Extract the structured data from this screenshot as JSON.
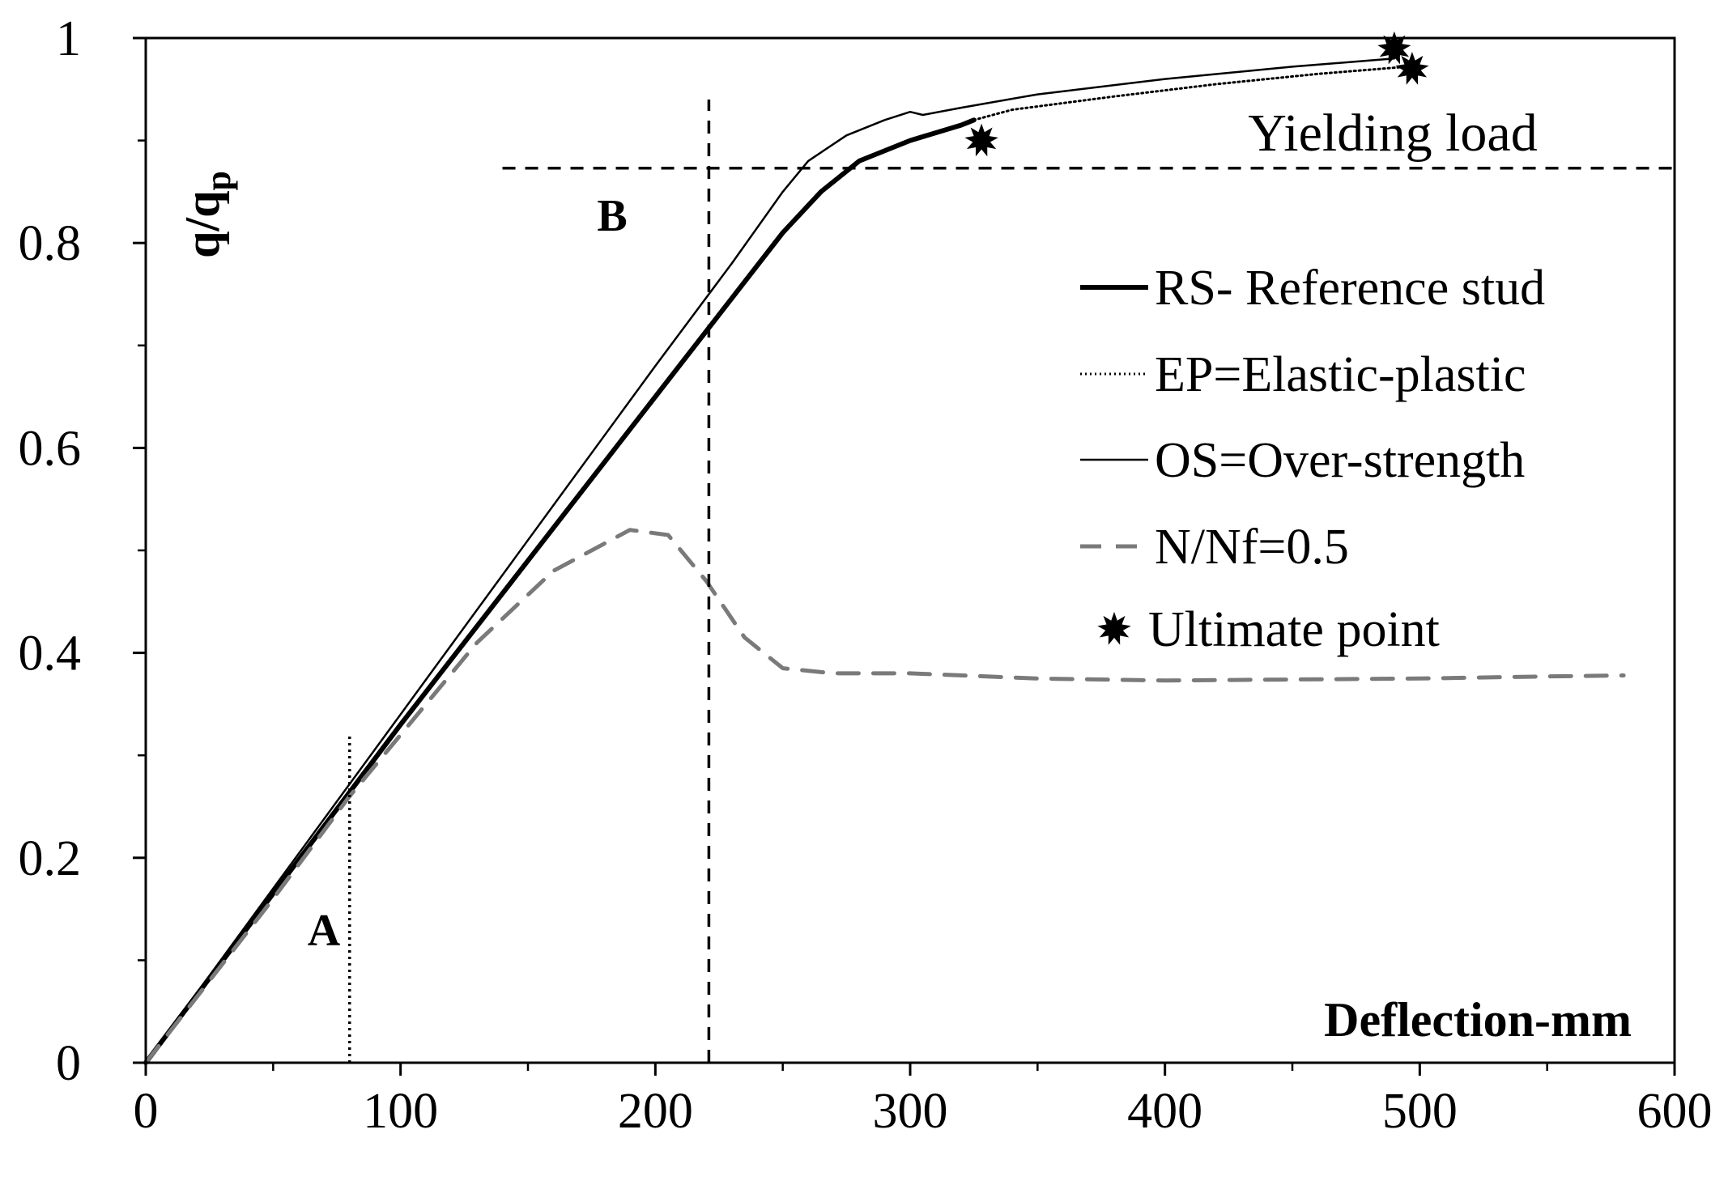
{
  "chart_data": {
    "type": "line",
    "title": "",
    "xlabel": "Deflection-mm",
    "ylabel_main": "q/q",
    "ylabel_sub": "p",
    "xlim": [
      0,
      600
    ],
    "ylim": [
      0,
      1
    ],
    "x_ticks": [
      0,
      100,
      200,
      300,
      400,
      500,
      600
    ],
    "x_tick_labels": [
      "0",
      "100",
      "200",
      "300",
      "400",
      "500",
      "600"
    ],
    "y_ticks": [
      0,
      0.2,
      0.4,
      0.6,
      0.8,
      1
    ],
    "y_tick_labels": [
      "0",
      "0.2",
      "0.4",
      "0.6",
      "0.8",
      "1"
    ],
    "x_minor_step": 50,
    "y_minor_step": 0.1,
    "grid": false,
    "legend_position": "right",
    "series": [
      {
        "name": "RS- Reference stud",
        "style": "thick",
        "color": "#000000",
        "points": [
          [
            0,
            0
          ],
          [
            50,
            0.165
          ],
          [
            100,
            0.33
          ],
          [
            150,
            0.49
          ],
          [
            200,
            0.65
          ],
          [
            225,
            0.73
          ],
          [
            250,
            0.81
          ],
          [
            265,
            0.85
          ],
          [
            280,
            0.88
          ],
          [
            300,
            0.9
          ],
          [
            320,
            0.915
          ],
          [
            325,
            0.92
          ]
        ]
      },
      {
        "name": "EP=Elastic-plastic",
        "style": "dotted",
        "color": "#000000",
        "points": [
          [
            325,
            0.92
          ],
          [
            340,
            0.93
          ],
          [
            380,
            0.943
          ],
          [
            420,
            0.955
          ],
          [
            460,
            0.965
          ],
          [
            495,
            0.972
          ]
        ]
      },
      {
        "name": "OS=Over-strength",
        "style": "thin",
        "color": "#000000",
        "points": [
          [
            0,
            0
          ],
          [
            50,
            0.17
          ],
          [
            100,
            0.34
          ],
          [
            150,
            0.51
          ],
          [
            200,
            0.68
          ],
          [
            230,
            0.78
          ],
          [
            250,
            0.85
          ],
          [
            260,
            0.88
          ],
          [
            275,
            0.905
          ],
          [
            290,
            0.92
          ],
          [
            300,
            0.928
          ],
          [
            305,
            0.925
          ],
          [
            320,
            0.932
          ],
          [
            350,
            0.945
          ],
          [
            400,
            0.96
          ],
          [
            450,
            0.972
          ],
          [
            490,
            0.98
          ]
        ]
      },
      {
        "name": "N/Nf=0.5",
        "style": "dashed",
        "color": "#7a7a7a",
        "points": [
          [
            0,
            0
          ],
          [
            50,
            0.16
          ],
          [
            80,
            0.26
          ],
          [
            100,
            0.32
          ],
          [
            130,
            0.41
          ],
          [
            160,
            0.48
          ],
          [
            190,
            0.52
          ],
          [
            205,
            0.515
          ],
          [
            220,
            0.47
          ],
          [
            235,
            0.415
          ],
          [
            250,
            0.385
          ],
          [
            270,
            0.38
          ],
          [
            300,
            0.38
          ],
          [
            350,
            0.375
          ],
          [
            400,
            0.373
          ],
          [
            450,
            0.374
          ],
          [
            500,
            0.375
          ],
          [
            550,
            0.377
          ],
          [
            580,
            0.378
          ]
        ]
      }
    ],
    "ultimate_points": [
      [
        328,
        0.9
      ],
      [
        490,
        0.99
      ],
      [
        497,
        0.97
      ]
    ],
    "reference_lines": [
      {
        "label": "A",
        "orientation": "vertical",
        "x": 80,
        "y_from": 0,
        "y_to": 0.32,
        "style": "dotted"
      },
      {
        "label": "B",
        "orientation": "vertical",
        "x": 221,
        "y_from": 0,
        "y_to": 0.94,
        "style": "dashed"
      },
      {
        "label": "Yielding load",
        "orientation": "horizontal",
        "y": 0.873,
        "x_from": 140,
        "x_to": 600,
        "style": "dashed"
      }
    ],
    "legend": [
      {
        "label": "RS- Reference stud",
        "style": "thick"
      },
      {
        "label": "EP=Elastic-plastic",
        "style": "dotted"
      },
      {
        "label": "OS=Over-strength",
        "style": "thin"
      },
      {
        "label": "N/Nf=0.5",
        "style": "dashed"
      },
      {
        "label": "Ultimate point",
        "style": "marker"
      }
    ]
  }
}
